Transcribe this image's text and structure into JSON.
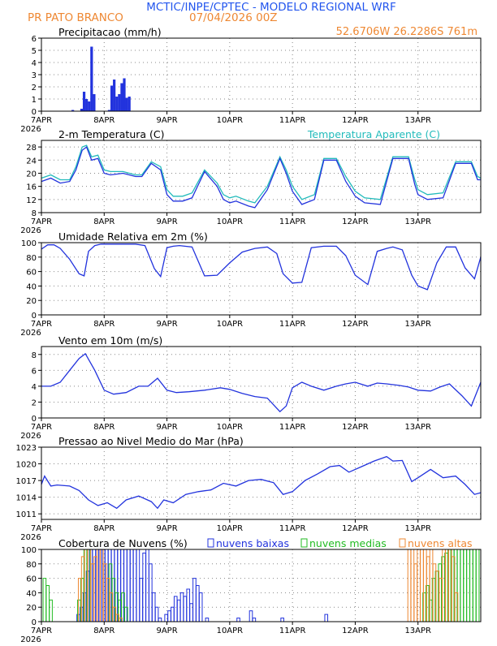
{
  "header": {
    "title": "MCTIC/INPE/CPTEC - MODELO REGIONAL WRF",
    "location": "PR PATO BRANCO",
    "run": "07/04/2026 00Z",
    "coords": "52.6706W 26.2286S 761m"
  },
  "colors": {
    "title": "#2255ee",
    "orange": "#ee8833",
    "blue": "#2233dd",
    "cyan": "#22bbbb",
    "green": "#22bb22",
    "axis": "#000000",
    "grid": "#888888"
  },
  "x_axis": {
    "domain": [
      0,
      7
    ],
    "day_ticks": [
      0,
      1,
      2,
      3,
      4,
      5,
      6
    ],
    "day_labels": [
      "7APR",
      "8APR",
      "9APR",
      "10APR",
      "11APR",
      "12APR",
      "13APR"
    ],
    "year_label": "2026"
  },
  "chart_data": [
    {
      "type": "bar",
      "title": "Precipitacao (mm/h)",
      "ylim": [
        0,
        6
      ],
      "yticks": [
        0,
        1,
        2,
        3,
        4,
        5,
        6
      ],
      "series": [
        {
          "x": [
            0.5,
            0.64,
            0.68,
            0.72,
            0.76,
            0.8,
            0.84,
            1.08,
            1.12,
            1.16,
            1.2,
            1.24,
            1.28,
            1.32,
            1.36,
            1.4
          ],
          "values": [
            0.1,
            0.2,
            1.6,
            1.0,
            0.8,
            5.3,
            1.4,
            0.1,
            2.1,
            2.6,
            1.2,
            1.4,
            2.3,
            2.7,
            1.1,
            1.2
          ]
        }
      ]
    },
    {
      "type": "line",
      "title": "2-m Temperatura (C)",
      "legend": "Temperatura Aparente (C)",
      "ylim": [
        8,
        30
      ],
      "yticks": [
        8,
        12,
        16,
        20,
        24,
        28
      ],
      "series": [
        {
          "name": "2-m Temperatura (C)",
          "x": [
            0,
            0.15,
            0.3,
            0.45,
            0.55,
            0.65,
            0.72,
            0.8,
            0.9,
            1.0,
            1.1,
            1.3,
            1.5,
            1.6,
            1.75,
            1.9,
            2.0,
            2.1,
            2.25,
            2.4,
            2.6,
            2.8,
            2.9,
            3.0,
            3.1,
            3.3,
            3.4,
            3.6,
            3.8,
            3.9,
            4.0,
            4.15,
            4.35,
            4.5,
            4.7,
            4.85,
            4.95,
            5.0,
            5.15,
            5.4,
            5.6,
            5.85,
            5.95,
            6.0,
            6.15,
            6.4,
            6.6,
            6.85,
            6.95,
            7.0
          ],
          "values": [
            18.5,
            19.5,
            18,
            18,
            22,
            28,
            28.5,
            25,
            25.5,
            21,
            20.5,
            20.5,
            19.5,
            19.5,
            23.5,
            22,
            15,
            13,
            13,
            14,
            21,
            17,
            13.5,
            12.5,
            13,
            11.5,
            11,
            16,
            25,
            21,
            16,
            12,
            13.5,
            24.5,
            24.5,
            19,
            16,
            14.5,
            12.5,
            12,
            25,
            25,
            18,
            15,
            13.5,
            14,
            23.5,
            23.5,
            19,
            18.5
          ]
        },
        {
          "name": "Temperatura Aparente (C)",
          "x": [
            0,
            0.15,
            0.3,
            0.45,
            0.55,
            0.65,
            0.72,
            0.8,
            0.9,
            1.0,
            1.1,
            1.3,
            1.5,
            1.6,
            1.75,
            1.9,
            2.0,
            2.1,
            2.25,
            2.4,
            2.6,
            2.8,
            2.9,
            3.0,
            3.1,
            3.3,
            3.4,
            3.6,
            3.8,
            3.9,
            4.0,
            4.15,
            4.35,
            4.5,
            4.7,
            4.85,
            4.95,
            5.0,
            5.15,
            5.4,
            5.6,
            5.85,
            5.95,
            6.0,
            6.15,
            6.4,
            6.6,
            6.85,
            6.95,
            7.0
          ],
          "values": [
            17.5,
            18.5,
            17,
            17.5,
            21,
            27,
            28,
            24,
            24.5,
            20,
            19.5,
            20,
            19,
            19,
            23,
            21,
            13.5,
            11.5,
            11.5,
            12.5,
            20.5,
            16,
            12,
            11,
            11.5,
            10,
            9.5,
            15,
            24.5,
            20,
            14.5,
            10.5,
            12,
            24,
            24,
            17.5,
            14.5,
            13,
            11,
            10.5,
            24.5,
            24.5,
            16.5,
            13.5,
            12,
            12.5,
            23,
            23,
            18,
            18
          ]
        }
      ]
    },
    {
      "type": "line",
      "title": "Umidade Relativa em 2m (%)",
      "ylim": [
        0,
        100
      ],
      "yticks": [
        0,
        20,
        40,
        60,
        80,
        100
      ],
      "series": [
        {
          "x": [
            0,
            0.1,
            0.2,
            0.3,
            0.45,
            0.6,
            0.68,
            0.75,
            0.85,
            0.95,
            1.1,
            1.3,
            1.5,
            1.65,
            1.8,
            1.9,
            2.0,
            2.1,
            2.2,
            2.4,
            2.6,
            2.8,
            3.0,
            3.2,
            3.4,
            3.6,
            3.75,
            3.85,
            4.0,
            4.15,
            4.3,
            4.5,
            4.7,
            4.85,
            5.0,
            5.2,
            5.35,
            5.5,
            5.6,
            5.75,
            5.9,
            6.0,
            6.15,
            6.3,
            6.45,
            6.6,
            6.75,
            6.9,
            7.0
          ],
          "values": [
            91,
            97,
            97,
            92,
            77,
            57,
            54,
            88,
            96,
            98,
            98,
            98,
            98,
            96,
            64,
            53,
            93,
            95,
            96,
            94,
            54,
            55,
            72,
            87,
            92,
            94,
            85,
            57,
            44,
            45,
            93,
            95,
            95,
            82,
            55,
            42,
            88,
            92,
            94,
            90,
            55,
            40,
            35,
            72,
            94,
            94,
            65,
            50,
            80
          ]
        }
      ]
    },
    {
      "type": "line",
      "title": "Vento em 10m (m/s)",
      "ylim": [
        0,
        9
      ],
      "yticks": [
        0,
        2,
        4,
        6,
        8
      ],
      "series": [
        {
          "x": [
            0,
            0.15,
            0.3,
            0.45,
            0.6,
            0.7,
            0.85,
            1.0,
            1.15,
            1.35,
            1.55,
            1.7,
            1.85,
            2.0,
            2.15,
            2.35,
            2.6,
            2.85,
            3.0,
            3.2,
            3.4,
            3.6,
            3.8,
            3.9,
            4.0,
            4.15,
            4.3,
            4.5,
            4.7,
            4.85,
            5.0,
            5.2,
            5.35,
            5.5,
            5.7,
            5.85,
            6.0,
            6.2,
            6.35,
            6.5,
            6.7,
            6.85,
            7.0
          ],
          "values": [
            4,
            4,
            4.5,
            6,
            7.5,
            8.1,
            6,
            3.5,
            3,
            3.2,
            4,
            4,
            5,
            3.5,
            3.2,
            3.3,
            3.5,
            3.8,
            3.6,
            3.1,
            2.7,
            2.5,
            0.8,
            1.5,
            3.8,
            4.5,
            4,
            3.5,
            4,
            4.3,
            4.5,
            4,
            4.4,
            4.3,
            4.1,
            3.9,
            3.5,
            3.4,
            3.9,
            4.3,
            2.8,
            1.5,
            4.5
          ]
        }
      ]
    },
    {
      "type": "line",
      "title": "Pressao ao Nivel Medio do Mar (hPa)",
      "ylim": [
        1010,
        1023
      ],
      "yticks": [
        1011,
        1014,
        1017,
        1020,
        1023
      ],
      "series": [
        {
          "x": [
            0,
            0.05,
            0.15,
            0.25,
            0.45,
            0.6,
            0.75,
            0.9,
            1.05,
            1.2,
            1.35,
            1.55,
            1.75,
            1.85,
            1.95,
            2.1,
            2.3,
            2.5,
            2.7,
            2.9,
            3.1,
            3.3,
            3.5,
            3.7,
            3.85,
            4.0,
            4.2,
            4.4,
            4.6,
            4.75,
            4.9,
            5.1,
            5.3,
            5.5,
            5.6,
            5.75,
            5.9,
            6.0,
            6.2,
            6.4,
            6.6,
            6.75,
            6.9,
            7.0
          ],
          "values": [
            1016.3,
            1017.8,
            1016,
            1016.2,
            1016,
            1015.2,
            1013.5,
            1012.5,
            1013,
            1012,
            1013.5,
            1014.2,
            1013.2,
            1012,
            1013.5,
            1013,
            1014.5,
            1015,
            1015.3,
            1016.5,
            1016,
            1017,
            1017.2,
            1016.6,
            1014.5,
            1015,
            1017,
            1018.2,
            1019.5,
            1019.7,
            1018.5,
            1019.5,
            1020.5,
            1021.3,
            1020.5,
            1020.6,
            1016.8,
            1017.5,
            1019,
            1017.5,
            1017.8,
            1016.3,
            1014.5,
            1014.8
          ]
        }
      ]
    },
    {
      "type": "bar",
      "title": "Cobertura de Nuvens (%)",
      "ylim": [
        0,
        100
      ],
      "yticks": [
        0,
        20,
        40,
        60,
        80,
        100
      ],
      "series": [
        {
          "name": "nuvens baixas",
          "x": [
            0.6,
            0.65,
            0.7,
            0.75,
            0.8,
            0.85,
            0.9,
            0.95,
            1.0,
            1.05,
            1.1,
            1.15,
            1.2,
            1.25,
            1.3,
            1.35,
            1.4,
            1.45,
            1.5,
            1.55,
            1.6,
            1.65,
            1.7,
            1.75,
            1.8,
            1.85,
            1.9,
            1.95,
            2.0,
            2.05,
            2.1,
            2.15,
            2.2,
            2.25,
            2.3,
            2.35,
            2.4,
            2.45,
            2.5,
            2.55,
            2.6,
            2.65,
            2.7,
            2.75,
            2.8,
            2.85,
            2.9,
            2.95,
            3.0,
            3.05,
            3.1,
            3.15,
            3.2,
            3.25,
            3.3,
            3.35,
            3.4,
            3.45,
            3.5,
            3.55,
            3.6,
            3.65,
            3.7,
            3.75,
            3.8,
            3.85,
            3.9,
            3.95,
            4.0,
            4.05,
            4.1,
            4.15,
            4.2,
            4.25,
            4.3,
            4.35,
            4.4,
            4.45,
            4.5,
            4.55,
            4.6,
            4.65,
            4.7,
            4.75,
            4.8,
            4.85,
            4.9,
            4.95,
            5.0,
            5.05,
            5.1,
            5.15,
            5.2,
            5.25,
            5.3,
            5.35,
            5.4,
            5.45,
            5.5,
            5.55,
            5.6,
            5.65,
            5.7,
            5.75,
            5.8,
            5.85,
            5.9
          ],
          "values": [
            10,
            20,
            40,
            70,
            100,
            100,
            100,
            100,
            100,
            100,
            100,
            100,
            100,
            100,
            100,
            100,
            100,
            100,
            100,
            100,
            60,
            95,
            100,
            80,
            40,
            20,
            5,
            0,
            10,
            15,
            20,
            35,
            30,
            40,
            35,
            45,
            25,
            60,
            50,
            40,
            0,
            5,
            0,
            0,
            0,
            0,
            0,
            0,
            0,
            0,
            0,
            5,
            0,
            0,
            0,
            15,
            5,
            0,
            0,
            0,
            0,
            0,
            0,
            0,
            0,
            5,
            0,
            0,
            0,
            0,
            0,
            0,
            0,
            0,
            0,
            0,
            0,
            0,
            0,
            10,
            0,
            0,
            0,
            0,
            0,
            0,
            0,
            0,
            0,
            0,
            0,
            0,
            0,
            0,
            0,
            0,
            0,
            0,
            0,
            0,
            0,
            0,
            0,
            0,
            0,
            0,
            0
          ]
        },
        {
          "name": "nuvens medias",
          "x": [
            0.05,
            0.1,
            0.15,
            0.2,
            0.25,
            0.6,
            0.65,
            0.7,
            0.75,
            1.1,
            1.15,
            1.2,
            1.25,
            1.3,
            1.35,
            6.1,
            6.15,
            6.2,
            6.25,
            6.3,
            6.35,
            6.4,
            6.45,
            6.5,
            6.55,
            6.6,
            6.65,
            6.7,
            6.75,
            6.8,
            6.85,
            6.9,
            6.95
          ],
          "values": [
            60,
            50,
            30,
            0,
            0,
            30,
            60,
            100,
            100,
            80,
            60,
            40,
            30,
            40,
            20,
            40,
            50,
            30,
            60,
            70,
            80,
            90,
            95,
            100,
            100,
            100,
            100,
            100,
            100,
            100,
            100,
            100,
            100
          ]
        },
        {
          "name": "nuvens altas",
          "x": [
            0.6,
            0.65,
            0.7,
            0.75,
            0.8,
            0.85,
            0.9,
            0.95,
            1.0,
            1.05,
            1.1,
            1.15,
            1.2,
            1.25,
            5.85,
            5.9,
            5.95,
            6.0,
            6.05,
            6.1,
            6.15,
            6.2,
            6.25,
            6.3,
            6.35,
            6.4,
            6.45,
            6.5,
            6.55,
            6.6
          ],
          "values": [
            60,
            90,
            100,
            100,
            80,
            90,
            100,
            100,
            80,
            60,
            40,
            20,
            10,
            5,
            100,
            100,
            80,
            100,
            100,
            100,
            90,
            100,
            80,
            70,
            60,
            100,
            100,
            100,
            90,
            40
          ]
        }
      ]
    }
  ]
}
